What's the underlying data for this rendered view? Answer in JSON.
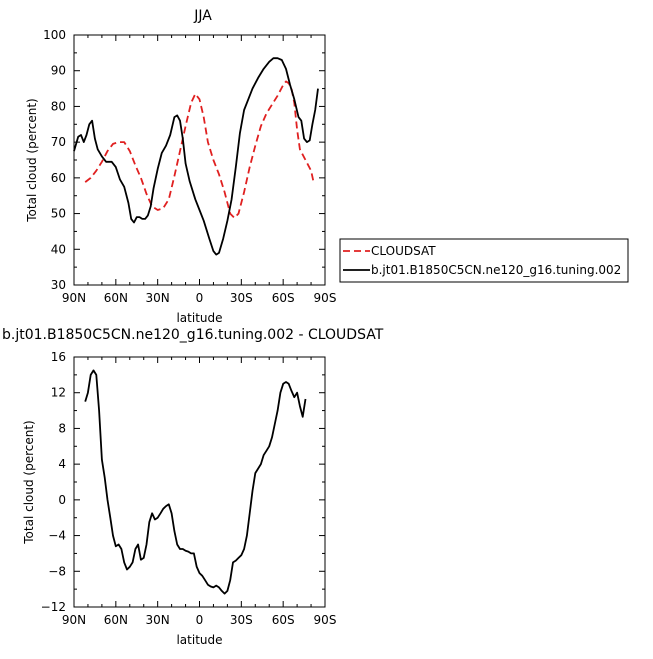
{
  "chart_data": [
    {
      "type": "line",
      "title": "JJA",
      "xlabel": "latitude",
      "ylabel": "Total cloud (percent)",
      "xlim": [
        90,
        -90
      ],
      "ylim": [
        30,
        100
      ],
      "x_ticks": [
        90,
        60,
        30,
        0,
        -30,
        -60,
        -90
      ],
      "x_tick_labels": [
        "90N",
        "60N",
        "30N",
        "0",
        "30S",
        "60S",
        "90S"
      ],
      "y_ticks": [
        30,
        40,
        50,
        60,
        70,
        80,
        90,
        100
      ],
      "y_tick_labels": [
        "30",
        "40",
        "50",
        "60",
        "70",
        "80",
        "90",
        "100"
      ],
      "grid": false,
      "legend_position": "right, outside plot, lower",
      "series": [
        {
          "name": "CLOUDSAT",
          "color": "#e02020",
          "dash": "dashed",
          "points": [
            [
              82,
              58.8
            ],
            [
              78,
              60
            ],
            [
              74,
              62
            ],
            [
              70,
              64.5
            ],
            [
              66,
              67.5
            ],
            [
              62,
              69.5
            ],
            [
              58,
              70
            ],
            [
              54,
              70
            ],
            [
              50,
              67.5
            ],
            [
              46,
              63.5
            ],
            [
              42,
              60
            ],
            [
              38,
              55.5
            ],
            [
              34,
              52
            ],
            [
              30,
              51
            ],
            [
              26,
              51.5
            ],
            [
              22,
              54
            ],
            [
              18,
              60.5
            ],
            [
              14,
              67.5
            ],
            [
              10,
              74.5
            ],
            [
              6,
              81
            ],
            [
              3,
              83.5
            ],
            [
              0,
              82
            ],
            [
              -3,
              77
            ],
            [
              -6,
              70
            ],
            [
              -10,
              65
            ],
            [
              -14,
              61
            ],
            [
              -18,
              56
            ],
            [
              -22,
              50
            ],
            [
              -25,
              48.8
            ],
            [
              -28,
              50
            ],
            [
              -32,
              56
            ],
            [
              -36,
              63
            ],
            [
              -40,
              69
            ],
            [
              -44,
              74.5
            ],
            [
              -48,
              78
            ],
            [
              -52,
              80.5
            ],
            [
              -56,
              83
            ],
            [
              -60,
              86
            ],
            [
              -62,
              87
            ],
            [
              -64,
              86.5
            ],
            [
              -66,
              85
            ],
            [
              -68,
              81
            ],
            [
              -70,
              73.5
            ],
            [
              -72,
              68
            ],
            [
              -76,
              65
            ],
            [
              -80,
              62
            ],
            [
              -82,
              58.5
            ]
          ]
        },
        {
          "name": "b.jt01.B1850C5CN.ne120_g16.tuning.002",
          "color": "#000000",
          "dash": "solid",
          "points": [
            [
              90,
              67.5
            ],
            [
              87,
              71.5
            ],
            [
              85,
              72
            ],
            [
              83,
              70
            ],
            [
              81,
              72
            ],
            [
              79,
              75
            ],
            [
              77,
              76
            ],
            [
              75,
              71
            ],
            [
              73,
              68
            ],
            [
              70,
              66
            ],
            [
              67,
              64.5
            ],
            [
              63,
              64.5
            ],
            [
              60,
              63
            ],
            [
              57,
              59.5
            ],
            [
              54,
              57.5
            ],
            [
              51,
              53
            ],
            [
              49,
              48.5
            ],
            [
              47,
              47.5
            ],
            [
              45,
              49
            ],
            [
              43,
              49
            ],
            [
              41,
              48.5
            ],
            [
              39,
              48.5
            ],
            [
              37,
              49.5
            ],
            [
              35,
              52
            ],
            [
              33,
              57
            ],
            [
              30,
              62.5
            ],
            [
              27,
              67
            ],
            [
              24,
              69
            ],
            [
              21,
              72
            ],
            [
              18,
              77
            ],
            [
              16,
              77.5
            ],
            [
              14,
              76
            ],
            [
              12,
              71
            ],
            [
              10,
              64
            ],
            [
              7,
              59
            ],
            [
              3,
              54
            ],
            [
              0,
              51
            ],
            [
              -3,
              48
            ],
            [
              -7,
              43
            ],
            [
              -10,
              39.5
            ],
            [
              -12,
              38.5
            ],
            [
              -14,
              39
            ],
            [
              -17,
              43
            ],
            [
              -20,
              48
            ],
            [
              -23,
              54
            ],
            [
              -26,
              63
            ],
            [
              -29,
              72.5
            ],
            [
              -32,
              79
            ],
            [
              -35,
              82
            ],
            [
              -38,
              85
            ],
            [
              -42,
              88
            ],
            [
              -46,
              90.5
            ],
            [
              -50,
              92.5
            ],
            [
              -53,
              93.5
            ],
            [
              -56,
              93.5
            ],
            [
              -59,
              93
            ],
            [
              -62,
              90.5
            ],
            [
              -65,
              86
            ],
            [
              -68,
              82
            ],
            [
              -71,
              77
            ],
            [
              -73,
              76
            ],
            [
              -75,
              71
            ],
            [
              -77,
              70
            ],
            [
              -79,
              70.5
            ],
            [
              -81,
              75
            ],
            [
              -83,
              79
            ],
            [
              -85,
              85
            ]
          ]
        }
      ]
    },
    {
      "type": "line",
      "title": "b.jt01.B1850C5CN.ne120_g16.tuning.002 - CLOUDSAT",
      "xlabel": "latitude",
      "ylabel": "Total cloud (percent)",
      "xlim": [
        90,
        -90
      ],
      "ylim": [
        -12,
        16
      ],
      "x_ticks": [
        90,
        60,
        30,
        0,
        -30,
        -60,
        -90
      ],
      "x_tick_labels": [
        "90N",
        "60N",
        "30N",
        "0",
        "30S",
        "60S",
        "90S"
      ],
      "y_ticks": [
        -12,
        -8,
        -4,
        0,
        4,
        8,
        12,
        16
      ],
      "y_tick_labels": [
        "−12",
        "−8",
        "−4",
        "0",
        "4",
        "8",
        "12",
        "16"
      ],
      "grid": false,
      "series": [
        {
          "color": "#000000",
          "dash": "solid",
          "points": [
            [
              82,
              11
            ],
            [
              80,
              12
            ],
            [
              78,
              14
            ],
            [
              76,
              14.5
            ],
            [
              74,
              14
            ],
            [
              72,
              10
            ],
            [
              70,
              4.5
            ],
            [
              68,
              2.5
            ],
            [
              66,
              0
            ],
            [
              64,
              -2
            ],
            [
              62,
              -4
            ],
            [
              60,
              -5.2
            ],
            [
              58,
              -5
            ],
            [
              56,
              -5.5
            ],
            [
              54,
              -7
            ],
            [
              52,
              -7.8
            ],
            [
              50,
              -7.5
            ],
            [
              48,
              -7
            ],
            [
              46,
              -5.5
            ],
            [
              44,
              -5
            ],
            [
              42,
              -6.7
            ],
            [
              40,
              -6.5
            ],
            [
              38,
              -5
            ],
            [
              36,
              -2.5
            ],
            [
              34,
              -1.5
            ],
            [
              32,
              -2.2
            ],
            [
              30,
              -2
            ],
            [
              28,
              -1.5
            ],
            [
              26,
              -1
            ],
            [
              24,
              -0.7
            ],
            [
              22,
              -0.5
            ],
            [
              20,
              -1.5
            ],
            [
              18,
              -3.5
            ],
            [
              16,
              -5
            ],
            [
              14,
              -5.5
            ],
            [
              12,
              -5.5
            ],
            [
              10,
              -5.7
            ],
            [
              8,
              -5.8
            ],
            [
              6,
              -6
            ],
            [
              4,
              -6
            ],
            [
              2,
              -7.5
            ],
            [
              0,
              -8.2
            ],
            [
              -2,
              -8.5
            ],
            [
              -4,
              -9
            ],
            [
              -6,
              -9.5
            ],
            [
              -8,
              -9.7
            ],
            [
              -10,
              -9.8
            ],
            [
              -12,
              -9.6
            ],
            [
              -14,
              -9.8
            ],
            [
              -16,
              -10.2
            ],
            [
              -18,
              -10.5
            ],
            [
              -20,
              -10.2
            ],
            [
              -22,
              -9
            ],
            [
              -24,
              -7
            ],
            [
              -26,
              -6.8
            ],
            [
              -28,
              -6.5
            ],
            [
              -30,
              -6.2
            ],
            [
              -32,
              -5.5
            ],
            [
              -34,
              -4
            ],
            [
              -36,
              -1.5
            ],
            [
              -38,
              1
            ],
            [
              -40,
              3
            ],
            [
              -42,
              3.5
            ],
            [
              -44,
              4
            ],
            [
              -46,
              5
            ],
            [
              -48,
              5.5
            ],
            [
              -50,
              6
            ],
            [
              -52,
              7
            ],
            [
              -54,
              8.5
            ],
            [
              -56,
              10
            ],
            [
              -58,
              12
            ],
            [
              -60,
              13
            ],
            [
              -62,
              13.2
            ],
            [
              -64,
              13
            ],
            [
              -66,
              12.2
            ],
            [
              -68,
              11.5
            ],
            [
              -70,
              12
            ],
            [
              -72,
              10.5
            ],
            [
              -74,
              9.3
            ],
            [
              -76,
              11.3
            ]
          ]
        }
      ]
    }
  ]
}
